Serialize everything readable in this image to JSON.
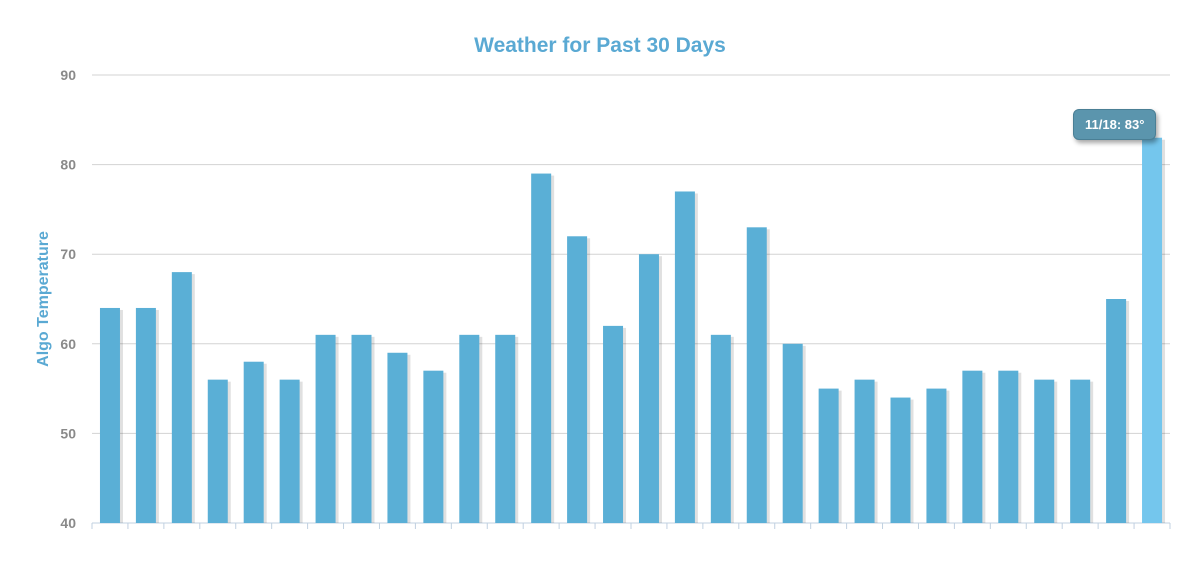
{
  "chart_data": {
    "type": "bar",
    "title": "Weather for Past 30 Days",
    "xlabel": "",
    "ylabel": "Algo Temperature",
    "ylim": [
      40,
      90
    ],
    "yticks": [
      "40",
      "50",
      "60",
      "70",
      "80",
      "90"
    ],
    "values": [
      64,
      64,
      68,
      56,
      58,
      56,
      61,
      61,
      59,
      57,
      61,
      61,
      79,
      72,
      62,
      70,
      77,
      61,
      73,
      60,
      55,
      56,
      54,
      55,
      57,
      57,
      56,
      56,
      65,
      83
    ],
    "highlighted_index": 29,
    "tooltip": "11/18: 83°",
    "grid": true,
    "bar_color": "#5aafd6",
    "highlight_color": "#74c6ed",
    "title_color": "#5aa9d3",
    "tooltip_color": "#5b95ad"
  }
}
